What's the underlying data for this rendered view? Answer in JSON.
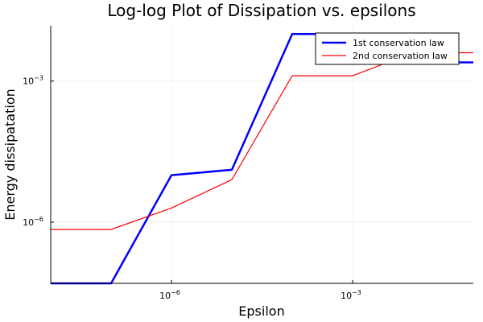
{
  "chart_data": {
    "type": "line",
    "title": "Log-log Plot of Dissipation vs. epsilons",
    "xlabel": "Epsilon",
    "ylabel": "Energy dissipatation",
    "xscale": "log10",
    "yscale": "log10",
    "xlim": [
      1e-08,
      0.1
    ],
    "ylim": [
      5e-08,
      0.015
    ],
    "grid": true,
    "legend_position": "top-right",
    "xticks": [
      {
        "value": 1e-06,
        "base": "10",
        "exp": "−6"
      },
      {
        "value": 0.001,
        "base": "10",
        "exp": "−3"
      }
    ],
    "yticks": [
      {
        "value": 1e-06,
        "base": "10",
        "exp": "−6"
      },
      {
        "value": 0.001,
        "base": "10",
        "exp": "−3"
      }
    ],
    "x": [
      1e-08,
      1e-07,
      1e-06,
      1e-05,
      0.0001,
      0.001,
      0.01,
      0.1
    ],
    "series": [
      {
        "name": "1st conservation law",
        "color": "#0000ff",
        "values": [
          4e-08,
          4e-08,
          1e-05,
          1.3e-05,
          0.01,
          0.01,
          0.0025,
          0.0025
        ]
      },
      {
        "name": "2nd conservation law",
        "color": "#ff0000",
        "values": [
          7e-07,
          7e-07,
          2e-06,
          8e-06,
          0.0013,
          0.0013,
          0.004,
          0.004
        ]
      }
    ]
  }
}
